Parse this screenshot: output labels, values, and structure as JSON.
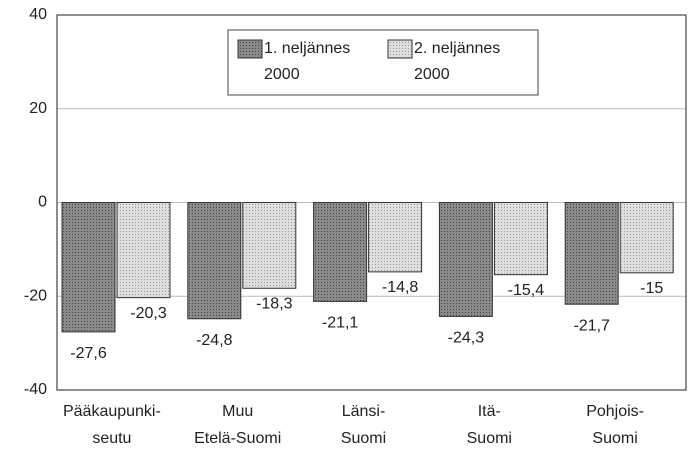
{
  "chart_data": {
    "type": "bar",
    "categories": [
      "Pääkaupunki-\nseutu",
      "Muu\nEtelä-Suomi",
      "Länsi-\nSuomi",
      "Itä-\nSuomi",
      "Pohjois-\nSuomi"
    ],
    "series": [
      {
        "name": "1. neljännes\n2000",
        "color": "#7a7a7a",
        "values": [
          -27.6,
          -24.8,
          -21.1,
          -24.3,
          -21.7
        ],
        "value_labels": [
          "-27,6",
          "-24,8",
          "-21,1",
          "-24,3",
          "-21,7"
        ]
      },
      {
        "name": "2. neljännes\n2000",
        "color": "#d0d0d0",
        "values": [
          -20.3,
          -18.3,
          -14.8,
          -15.4,
          -15
        ],
        "value_labels": [
          "-20,3",
          "-18,3",
          "-14,8",
          "-15,4",
          "-15"
        ]
      }
    ],
    "ylim": [
      -40,
      40
    ],
    "yticks": [
      40,
      20,
      0,
      -20,
      -40
    ],
    "grid": true,
    "legend": "top"
  }
}
